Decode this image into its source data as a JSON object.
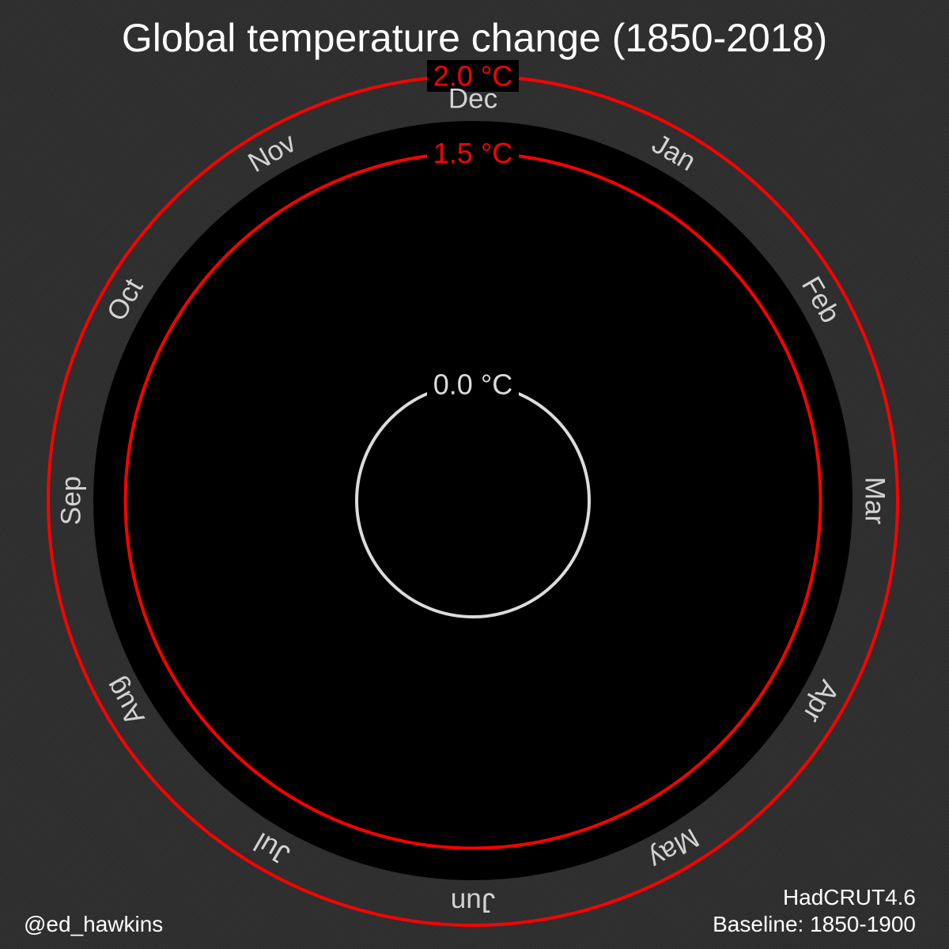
{
  "title": "Global temperature change (1850-2018)",
  "author": "@ed_hawkins",
  "dataset": "HadCRUT4.6",
  "baseline": "Baseline: 1850-1900",
  "chart_data": {
    "type": "polar-line",
    "title": "Global temperature change (1850-2018)",
    "angular_axis": {
      "categories": [
        "Jan",
        "Feb",
        "Mar",
        "Apr",
        "May",
        "Jun",
        "Jul",
        "Aug",
        "Sep",
        "Oct",
        "Nov",
        "Dec"
      ],
      "direction": "clockwise",
      "top_category": "Dec"
    },
    "radial_axis": {
      "unit": "°C",
      "range": [
        -1.0,
        2.25
      ]
    },
    "reference_rings": [
      {
        "value": 0.0,
        "label": "0.0 °C",
        "color": "#dcdcdc"
      },
      {
        "value": 1.5,
        "label": "1.5 °C",
        "color": "#ff0000"
      },
      {
        "value": 2.0,
        "label": "2.0 °C",
        "color": "#ff0000"
      }
    ],
    "series": [],
    "grid": false,
    "legend": "none"
  },
  "colors": {
    "background": "#2e2e2e",
    "plot_area": "#000000",
    "month_text": "#d2d2d2",
    "threshold": "#ff0000",
    "zero_ring": "#dcdcdc",
    "text": "#ffffff"
  }
}
